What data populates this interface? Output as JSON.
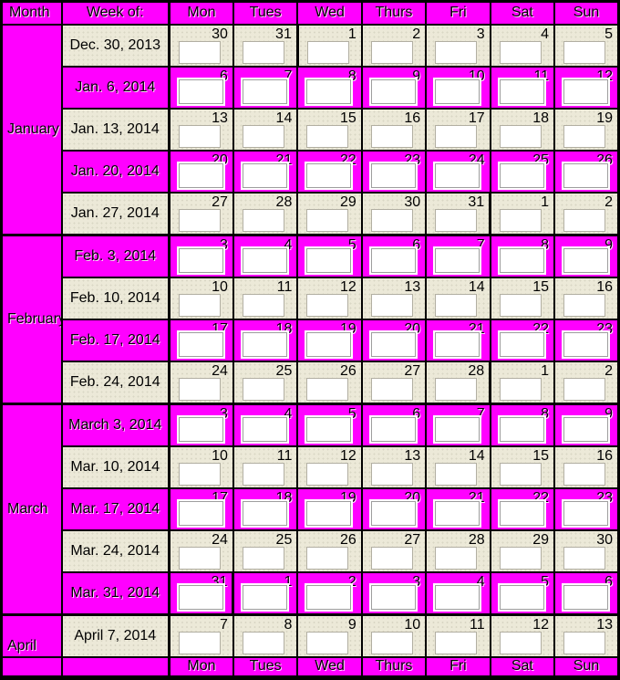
{
  "colors": {
    "magenta": "#FF00FF",
    "light_row": "#ECE9D8",
    "border": "#000000",
    "box_fill": "#FFFFFF",
    "box_border_light": "#B2AFA2",
    "box_border_magenta": "#9E9E9E",
    "text": "#000000"
  },
  "header": {
    "month": "Month",
    "week_of": "Week of:",
    "days": [
      "Mon",
      "Tues",
      "Wed",
      "Thurs",
      "Fri",
      "Sat",
      "Sun"
    ]
  },
  "footer": {
    "days": [
      "Mon",
      "Tues",
      "Wed",
      "Thurs",
      "Fri",
      "Sat",
      "Sun"
    ]
  },
  "months": [
    {
      "label": "January",
      "span": 5
    },
    {
      "label": "February",
      "span": 4
    },
    {
      "label": "March",
      "span": 5
    },
    {
      "label": "April",
      "span": 1,
      "valign": "bottom"
    }
  ],
  "weeks": [
    {
      "week_of": "Dec. 30, 2013",
      "style": "light",
      "days": [
        30,
        31,
        1,
        2,
        3,
        4,
        5
      ],
      "heavy_after": 1
    },
    {
      "week_of": "Jan. 6, 2014",
      "style": "magenta",
      "days": [
        6,
        7,
        8,
        9,
        10,
        11,
        12
      ]
    },
    {
      "week_of": "Jan. 13, 2014",
      "style": "light",
      "days": [
        13,
        14,
        15,
        16,
        17,
        18,
        19
      ]
    },
    {
      "week_of": "Jan. 20, 2014",
      "style": "magenta",
      "days": [
        20,
        21,
        22,
        23,
        24,
        25,
        26
      ]
    },
    {
      "week_of": "Jan. 27, 2014",
      "style": "light",
      "days": [
        27,
        28,
        29,
        30,
        31,
        1,
        2
      ],
      "heavy_after": 4,
      "heavy_bottom": true
    },
    {
      "week_of": "Feb. 3, 2014",
      "style": "magenta",
      "days": [
        3,
        4,
        5,
        6,
        7,
        8,
        9
      ]
    },
    {
      "week_of": "Feb. 10, 2014",
      "style": "light",
      "days": [
        10,
        11,
        12,
        13,
        14,
        15,
        16
      ]
    },
    {
      "week_of": "Feb. 17, 2014",
      "style": "magenta",
      "days": [
        17,
        18,
        19,
        20,
        21,
        22,
        23
      ]
    },
    {
      "week_of": "Feb. 24, 2014",
      "style": "light",
      "days": [
        24,
        25,
        26,
        27,
        28,
        1,
        2
      ],
      "heavy_after": 4,
      "heavy_bottom": true
    },
    {
      "week_of": "March 3, 2014",
      "style": "magenta",
      "days": [
        3,
        4,
        5,
        6,
        7,
        8,
        9
      ]
    },
    {
      "week_of": "Mar. 10, 2014",
      "style": "light",
      "days": [
        10,
        11,
        12,
        13,
        14,
        15,
        16
      ]
    },
    {
      "week_of": "Mar. 17, 2014",
      "style": "magenta",
      "days": [
        17,
        18,
        19,
        20,
        21,
        22,
        23
      ]
    },
    {
      "week_of": "Mar. 24, 2014",
      "style": "light",
      "days": [
        24,
        25,
        26,
        27,
        28,
        29,
        30
      ]
    },
    {
      "week_of": "Mar. 31, 2014",
      "style": "magenta",
      "days": [
        31,
        1,
        2,
        3,
        4,
        5,
        6
      ],
      "heavy_after": 0,
      "heavy_bottom": true
    },
    {
      "week_of": "April 7, 2014",
      "style": "light",
      "days": [
        7,
        8,
        9,
        10,
        11,
        12,
        13
      ]
    }
  ]
}
